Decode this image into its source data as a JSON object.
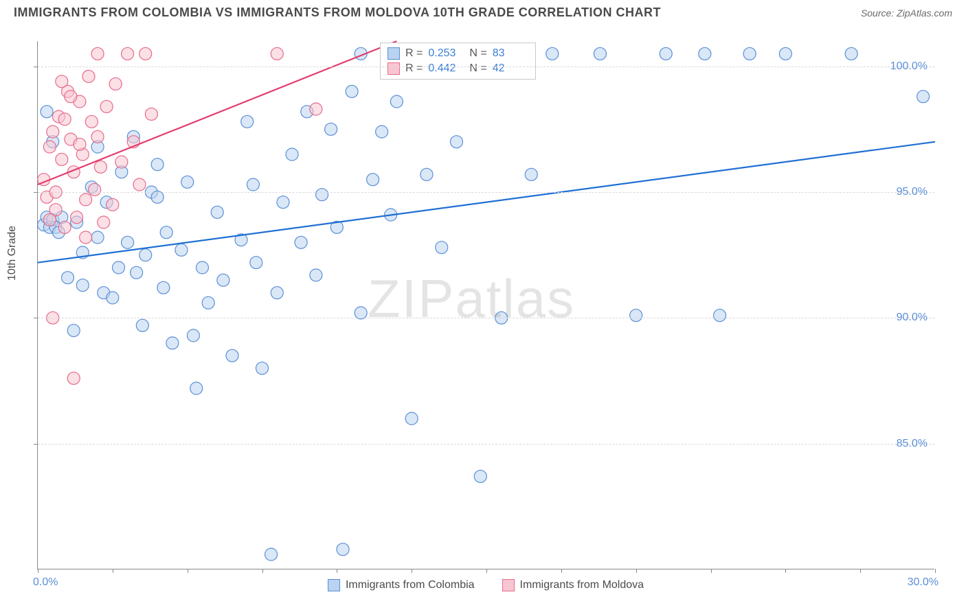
{
  "title": "IMMIGRANTS FROM COLOMBIA VS IMMIGRANTS FROM MOLDOVA 10TH GRADE CORRELATION CHART",
  "source": "Source: ZipAtlas.com",
  "y_axis_title": "10th Grade",
  "watermark": "ZIPatlas",
  "chart": {
    "type": "scatter",
    "xlim": [
      0,
      30
    ],
    "ylim": [
      80,
      101
    ],
    "x_ticks": [
      0,
      2.5,
      5,
      7.5,
      10,
      12.5,
      15,
      17.5,
      20,
      22.5,
      25,
      27.5,
      30
    ],
    "x_tick_labels_shown": {
      "0": "0.0%",
      "30": "30.0%"
    },
    "y_ticks": [
      85,
      90,
      95,
      100
    ],
    "y_tick_labels": [
      "85.0%",
      "90.0%",
      "95.0%",
      "100.0%"
    ],
    "grid_color": "#d8d8d8",
    "axis_color": "#888888",
    "background_color": "#ffffff",
    "tick_label_color": "#5b8fd6",
    "marker_radius": 9,
    "marker_stroke_width": 1.2,
    "trend_line_width": 2.2
  },
  "series": [
    {
      "name": "Immigrants from Colombia",
      "fill": "#b9d3f0",
      "stroke": "#5b8fd6",
      "fill_opacity": 0.55,
      "R": "0.253",
      "N": "83",
      "trend": {
        "x1": 0,
        "y1": 92.2,
        "x2": 30,
        "y2": 97.0,
        "color": "#1f6fd4"
      },
      "points": [
        [
          0.2,
          93.7
        ],
        [
          0.3,
          94.0
        ],
        [
          0.4,
          93.6
        ],
        [
          0.5,
          93.9
        ],
        [
          0.6,
          93.6
        ],
        [
          0.7,
          93.4
        ],
        [
          0.8,
          94.0
        ],
        [
          0.3,
          98.2
        ],
        [
          0.5,
          97.0
        ],
        [
          1.0,
          91.6
        ],
        [
          1.2,
          89.5
        ],
        [
          1.3,
          93.8
        ],
        [
          1.5,
          92.6
        ],
        [
          1.5,
          91.3
        ],
        [
          1.8,
          95.2
        ],
        [
          2.0,
          93.2
        ],
        [
          2.2,
          91.0
        ],
        [
          2.3,
          94.6
        ],
        [
          2.5,
          90.8
        ],
        [
          2.7,
          92.0
        ],
        [
          2.8,
          95.8
        ],
        [
          3.0,
          93.0
        ],
        [
          3.2,
          97.2
        ],
        [
          3.3,
          91.8
        ],
        [
          3.5,
          89.7
        ],
        [
          3.6,
          92.5
        ],
        [
          3.8,
          95.0
        ],
        [
          4.0,
          96.1
        ],
        [
          4.2,
          91.2
        ],
        [
          4.3,
          93.4
        ],
        [
          4.5,
          89.0
        ],
        [
          4.8,
          92.7
        ],
        [
          5.0,
          95.4
        ],
        [
          5.2,
          89.3
        ],
        [
          5.3,
          87.2
        ],
        [
          5.5,
          92.0
        ],
        [
          5.7,
          90.6
        ],
        [
          6.0,
          94.2
        ],
        [
          6.2,
          91.5
        ],
        [
          6.5,
          88.5
        ],
        [
          6.8,
          93.1
        ],
        [
          7.0,
          97.8
        ],
        [
          7.2,
          95.3
        ],
        [
          7.5,
          88.0
        ],
        [
          7.8,
          80.6
        ],
        [
          8.0,
          91.0
        ],
        [
          8.2,
          94.6
        ],
        [
          8.5,
          96.5
        ],
        [
          8.8,
          93.0
        ],
        [
          9.0,
          98.2
        ],
        [
          9.3,
          91.7
        ],
        [
          9.5,
          94.9
        ],
        [
          9.8,
          97.5
        ],
        [
          10.0,
          93.6
        ],
        [
          10.2,
          80.8
        ],
        [
          10.5,
          99.0
        ],
        [
          10.8,
          90.2
        ],
        [
          10.8,
          100.5
        ],
        [
          11.2,
          95.5
        ],
        [
          11.5,
          97.4
        ],
        [
          11.8,
          94.1
        ],
        [
          12.0,
          98.6
        ],
        [
          12.5,
          86.0
        ],
        [
          12.8,
          100.5
        ],
        [
          13.0,
          95.7
        ],
        [
          13.5,
          92.8
        ],
        [
          14.0,
          97.0
        ],
        [
          14.8,
          83.7
        ],
        [
          15.5,
          90.0
        ],
        [
          16.5,
          95.7
        ],
        [
          17.2,
          100.5
        ],
        [
          18.8,
          100.5
        ],
        [
          20.0,
          90.1
        ],
        [
          21.0,
          100.5
        ],
        [
          22.3,
          100.5
        ],
        [
          22.8,
          90.1
        ],
        [
          23.8,
          100.5
        ],
        [
          25.0,
          100.5
        ],
        [
          27.2,
          100.5
        ],
        [
          29.6,
          98.8
        ],
        [
          7.3,
          92.2
        ],
        [
          4.0,
          94.8
        ],
        [
          2.0,
          96.8
        ]
      ]
    },
    {
      "name": "Immigrants from Moldova",
      "fill": "#f7c6d2",
      "stroke": "#e76a8a",
      "fill_opacity": 0.55,
      "R": "0.442",
      "N": "42",
      "trend": {
        "x1": 0,
        "y1": 95.3,
        "x2": 12,
        "y2": 101.0,
        "color": "#e23d6d"
      },
      "points": [
        [
          0.2,
          95.5
        ],
        [
          0.3,
          94.8
        ],
        [
          0.4,
          96.8
        ],
        [
          0.5,
          97.4
        ],
        [
          0.6,
          95.0
        ],
        [
          0.7,
          98.0
        ],
        [
          0.8,
          96.3
        ],
        [
          0.6,
          94.3
        ],
        [
          0.9,
          93.6
        ],
        [
          1.0,
          99.0
        ],
        [
          1.1,
          97.1
        ],
        [
          1.2,
          95.8
        ],
        [
          1.3,
          94.0
        ],
        [
          1.4,
          98.6
        ],
        [
          1.5,
          96.5
        ],
        [
          1.6,
          93.2
        ],
        [
          1.8,
          97.8
        ],
        [
          1.9,
          95.1
        ],
        [
          2.0,
          100.5
        ],
        [
          2.1,
          96.0
        ],
        [
          2.3,
          98.4
        ],
        [
          2.5,
          94.5
        ],
        [
          2.6,
          99.3
        ],
        [
          2.8,
          96.2
        ],
        [
          3.0,
          100.5
        ],
        [
          3.2,
          97.0
        ],
        [
          3.4,
          95.3
        ],
        [
          3.6,
          100.5
        ],
        [
          3.8,
          98.1
        ],
        [
          0.5,
          90.0
        ],
        [
          1.2,
          87.6
        ],
        [
          2.2,
          93.8
        ],
        [
          1.7,
          99.6
        ],
        [
          0.9,
          97.9
        ],
        [
          1.4,
          96.9
        ],
        [
          0.4,
          93.9
        ],
        [
          2.0,
          97.2
        ],
        [
          1.1,
          98.8
        ],
        [
          0.8,
          99.4
        ],
        [
          1.6,
          94.7
        ],
        [
          8.0,
          100.5
        ],
        [
          9.3,
          98.3
        ]
      ]
    }
  ],
  "legend_top": {
    "labels": {
      "R": "R =",
      "N": "N ="
    }
  },
  "legend_bottom": [
    {
      "label": "Immigrants from Colombia",
      "fill": "#b9d3f0",
      "stroke": "#5b8fd6"
    },
    {
      "label": "Immigrants from Moldova",
      "fill": "#f7c6d2",
      "stroke": "#e76a8a"
    }
  ]
}
